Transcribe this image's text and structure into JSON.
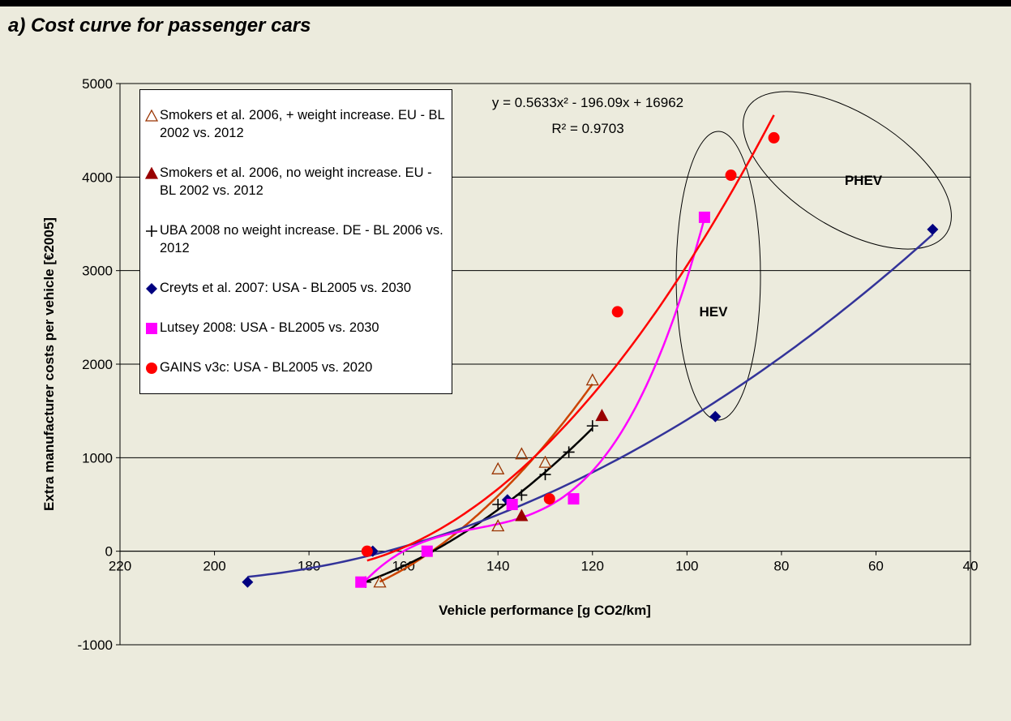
{
  "chart_data": {
    "type": "scatter",
    "title": "a) Cost curve for passenger cars",
    "x_label": "Vehicle performance [g CO2/km]",
    "y_label": "Extra manufacturer costs per vehicle [€2005]",
    "xlim": [
      220,
      40
    ],
    "xticks": [
      220,
      200,
      180,
      160,
      140,
      120,
      100,
      80,
      60,
      40
    ],
    "ylim": [
      -1000,
      5000
    ],
    "yticks": [
      -1000,
      0,
      1000,
      2000,
      3000,
      4000,
      5000
    ],
    "grid": true,
    "annotations": [
      "y = 0.5633x² - 196.09x + 16962",
      "R² = 0.9703",
      "HEV",
      "PHEV"
    ],
    "series": [
      {
        "name": "Smokers et al. 2006, + weight increase. EU - BL 2002 vs. 2012",
        "color": "#993300",
        "marker": "triangle-open",
        "trendline": {
          "type": "polynomial",
          "order": 2,
          "color": "#cc4400"
        },
        "x": [
          165,
          140,
          140,
          135,
          130,
          120
        ],
        "values": [
          -330,
          270,
          880,
          1040,
          950,
          1830
        ]
      },
      {
        "name": "Smokers et al. 2006, no weight increase. EU - BL 2002 vs. 2012",
        "color": "#990000",
        "marker": "triangle",
        "x": [
          135,
          118
        ],
        "values": [
          380,
          1450
        ]
      },
      {
        "name": "UBA 2008 no weight increase. DE - BL 2006 vs. 2012",
        "color": "#000000",
        "marker": "plus",
        "trendline": {
          "type": "polynomial",
          "order": 2,
          "color": "#000000"
        },
        "x": [
          168,
          140,
          135,
          130,
          125,
          120
        ],
        "values": [
          -330,
          500,
          600,
          820,
          1060,
          1340
        ]
      },
      {
        "name": "Creyts et al. 2007: USA - BL2005 vs. 2030",
        "color": "#000080",
        "marker": "diamond",
        "trendline": {
          "type": "polynomial",
          "order": 2,
          "color": "#333399"
        },
        "x": [
          193,
          166.5,
          138,
          94,
          48
        ],
        "values": [
          -330,
          0,
          550,
          1440,
          3440
        ]
      },
      {
        "name": "Lutsey 2008: USA - BL2005 vs. 2030",
        "color": "#ff00ff",
        "marker": "square",
        "trendline": {
          "type": "polynomial",
          "order": 3,
          "color": "#ff00ff"
        },
        "x": [
          169,
          155,
          137,
          124,
          96.3
        ],
        "values": [
          -330,
          0,
          500,
          560,
          3570
        ]
      },
      {
        "name": "GAINS v3c: USA - BL2005 vs. 2020",
        "color": "#ff0000",
        "marker": "circle",
        "trendline": {
          "type": "polynomial",
          "order": 2,
          "color": "#ff0000"
        },
        "x": [
          167.7,
          129.1,
          114.7,
          90.7,
          81.6
        ],
        "values": [
          0,
          560,
          2560,
          4020,
          4420
        ]
      }
    ]
  }
}
